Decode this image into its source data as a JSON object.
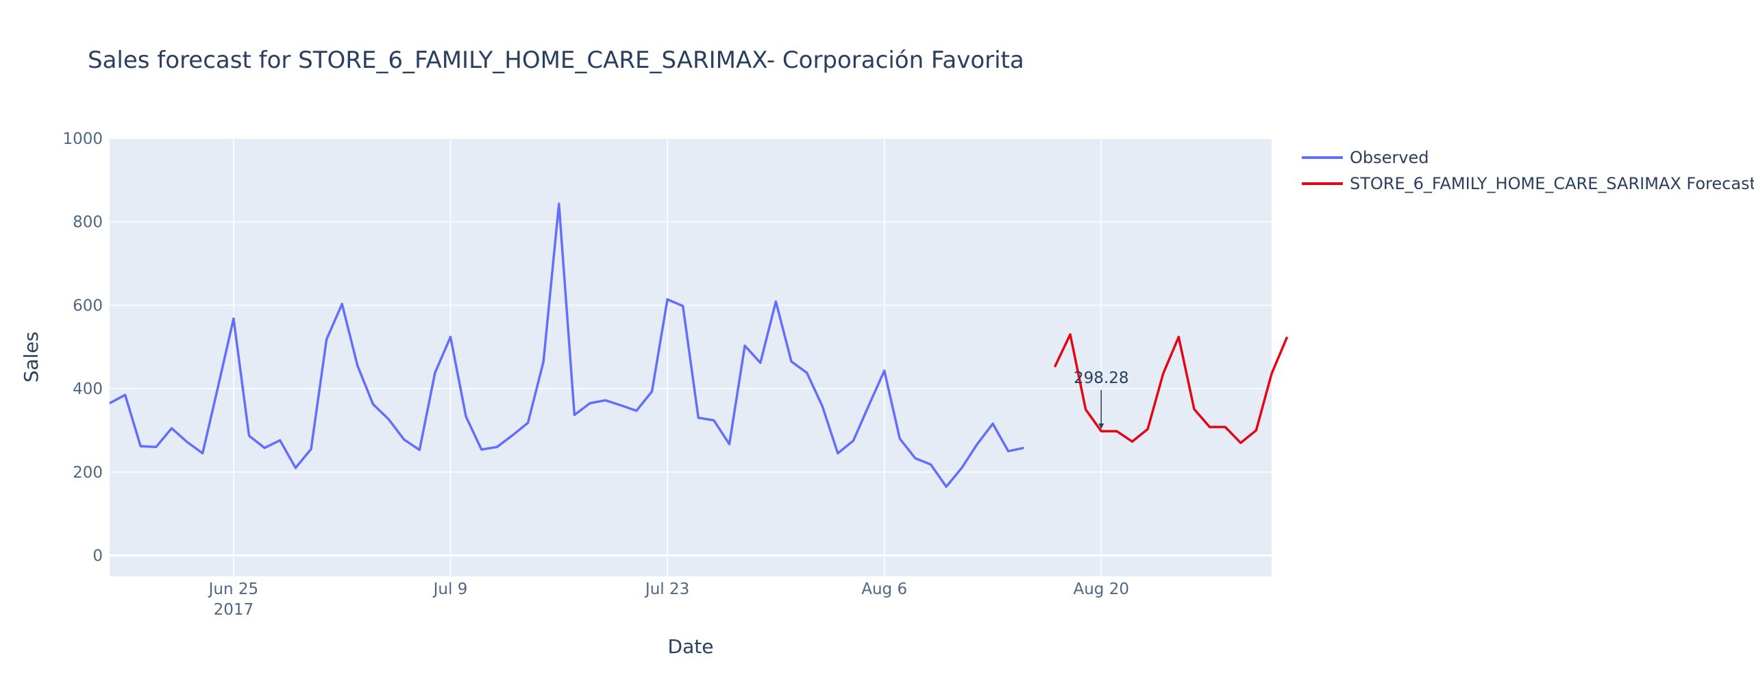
{
  "chart_data": {
    "type": "line",
    "title": "Sales forecast for STORE_6_FAMILY_HOME_CARE_SARIMAX- Corporación Favorita",
    "xlabel": "Date",
    "ylabel": "Sales",
    "ylim": [
      -50,
      1000
    ],
    "yticks": [
      0,
      200,
      400,
      600,
      800,
      1000
    ],
    "xlim": [
      "2017-06-17",
      "2017-08-31"
    ],
    "xticks": [
      {
        "date": "2017-06-25",
        "label": "Jun 25",
        "sublabel": "2017"
      },
      {
        "date": "2017-07-09",
        "label": "Jul 9",
        "sublabel": ""
      },
      {
        "date": "2017-07-23",
        "label": "Jul 23",
        "sublabel": ""
      },
      {
        "date": "2017-08-06",
        "label": "Aug 6",
        "sublabel": ""
      },
      {
        "date": "2017-08-20",
        "label": "Aug 20",
        "sublabel": ""
      }
    ],
    "grid": true,
    "legend_position": "top-right",
    "series": [
      {
        "name": "Observed",
        "color": "#636efa",
        "start_date": "2017-06-17",
        "values": [
          365,
          385,
          262,
          260,
          305,
          272,
          245,
          405,
          568,
          287,
          258,
          276,
          210,
          255,
          518,
          603,
          455,
          363,
          327,
          278,
          253,
          438,
          524,
          333,
          254,
          260,
          288,
          318,
          465,
          843,
          337,
          365,
          372,
          360,
          347,
          393,
          614,
          598,
          330,
          324,
          267,
          503,
          462,
          609,
          465,
          438,
          358,
          245,
          275,
          360,
          443,
          280,
          233,
          218,
          165,
          210,
          267,
          316,
          250,
          258
        ]
      },
      {
        "name": "STORE_6_FAMILY_HOME_CARE_SARIMAX Forecast",
        "color": "#e30613",
        "start_date": "2017-08-17",
        "values": [
          452,
          530,
          350,
          298,
          298,
          273,
          303,
          436,
          524,
          351,
          308,
          308,
          270,
          300,
          436,
          524
        ]
      }
    ],
    "annotations": [
      {
        "date": "2017-08-20",
        "value": 298.28,
        "text": "298.28"
      }
    ]
  }
}
